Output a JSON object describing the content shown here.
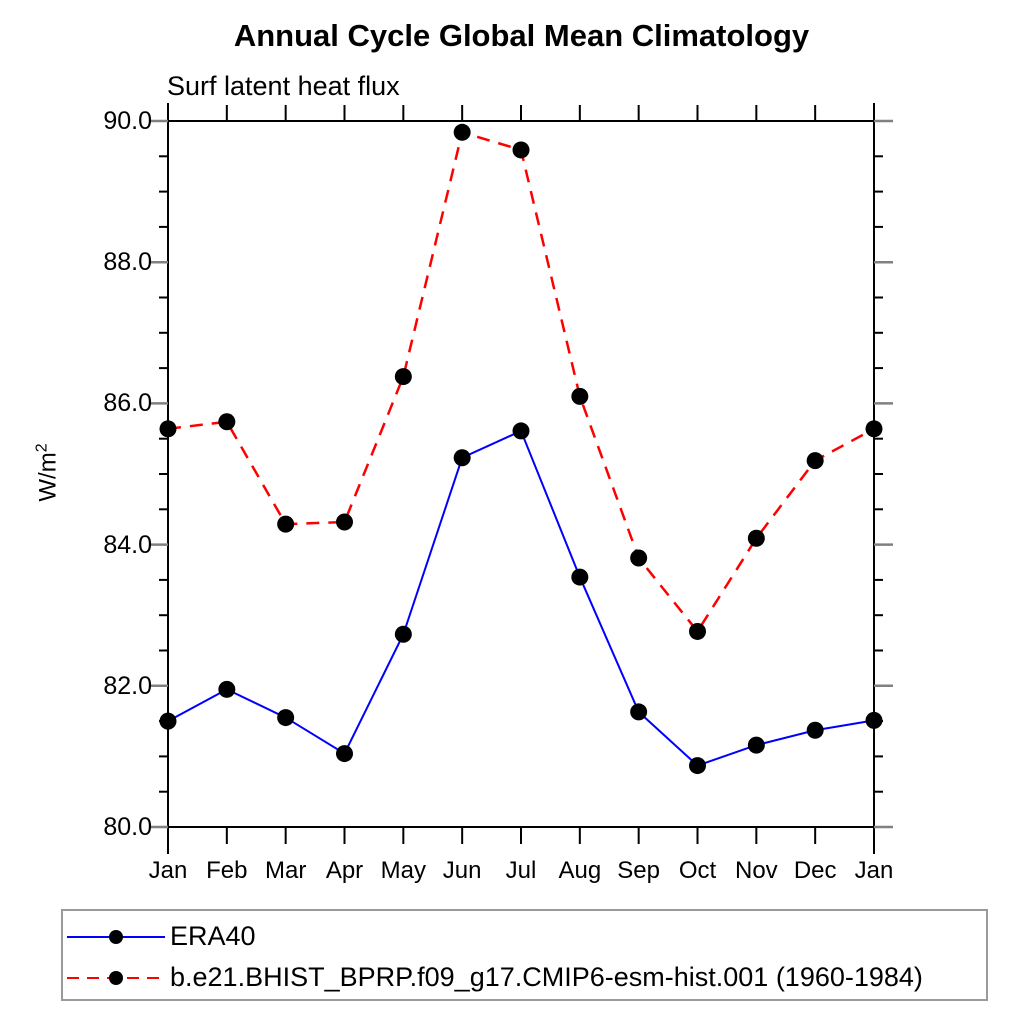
{
  "chart_data": {
    "type": "line",
    "title": "Annual Cycle Global Mean Climatology",
    "subtitle": "Surf latent heat flux",
    "ylabel_base": "W/m",
    "ylabel_sup": "2",
    "categories": [
      "Jan",
      "Feb",
      "Mar",
      "Apr",
      "May",
      "Jun",
      "Jul",
      "Aug",
      "Sep",
      "Oct",
      "Nov",
      "Dec",
      "Jan"
    ],
    "ylim": [
      80.0,
      90.0
    ],
    "ytick_major_step": 2.0,
    "ytick_minor_step": 0.5,
    "ytick_labels": [
      "90.0",
      "88.0",
      "86.0",
      "84.0",
      "82.0",
      "80.0"
    ],
    "grid": false,
    "legend_position": "bottom-left-box",
    "axis_color": "#000000",
    "major_tick_color": "#808080",
    "marker_color": "#000000",
    "series": [
      {
        "name": "ERA40",
        "color": "#0000ff",
        "line_style": "solid",
        "marker": "circle",
        "values": [
          81.5,
          81.95,
          81.55,
          81.04,
          82.73,
          85.23,
          85.61,
          83.54,
          81.63,
          80.87,
          81.16,
          81.37,
          81.51
        ]
      },
      {
        "name": "b.e21.BHIST_BPRP.f09_g17.CMIP6-esm-hist.001 (1960-1984)",
        "color": "#ff0000",
        "line_style": "dashed",
        "marker": "circle",
        "values": [
          85.64,
          85.74,
          84.29,
          84.32,
          86.38,
          89.84,
          89.59,
          86.1,
          83.81,
          82.77,
          84.09,
          85.19,
          85.64
        ]
      }
    ]
  }
}
